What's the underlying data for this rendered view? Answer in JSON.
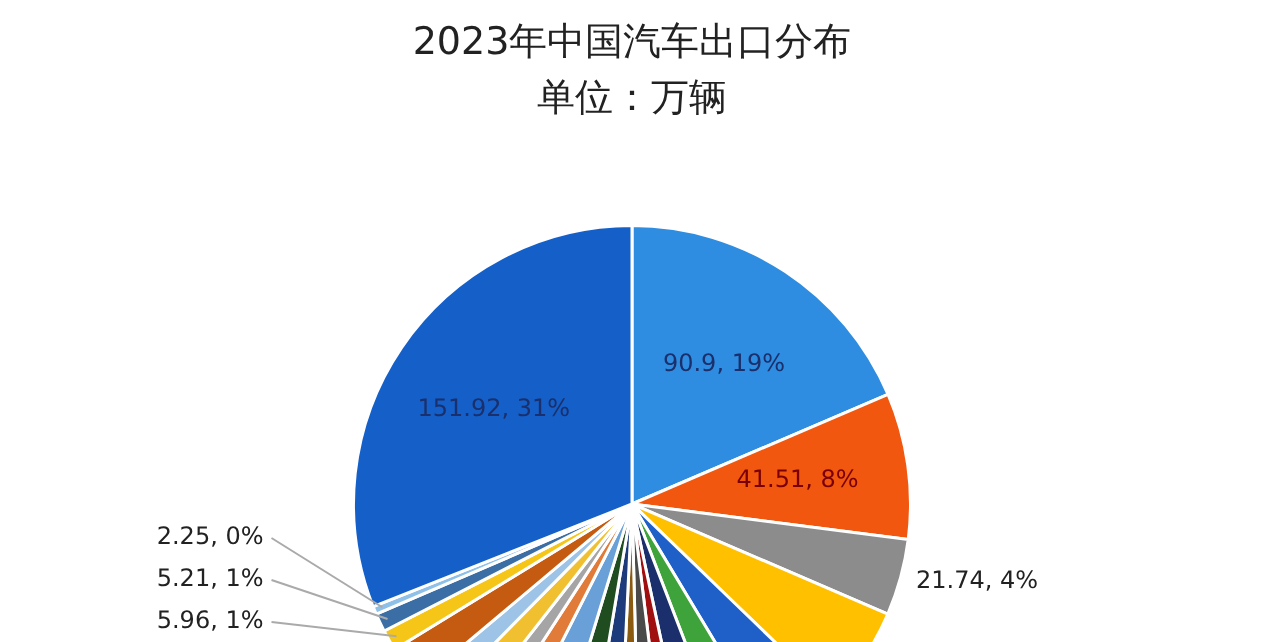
{
  "chart_data": {
    "type": "pie",
    "title": "2023年中国汽车出口分布",
    "subtitle": "单位：万辆",
    "categories": [
      null,
      null,
      null,
      null,
      null,
      null,
      null,
      null,
      null,
      null,
      null,
      null,
      null,
      null,
      null,
      null,
      null,
      null,
      null,
      null,
      null,
      null
    ],
    "values": [
      90.9,
      41.51,
      21.74,
      28.2,
      20.4,
      13.6,
      12.2,
      6.8,
      7.6,
      5.7,
      9.3,
      10.1,
      13.6,
      8.2,
      6.8,
      9.0,
      7.3,
      11.6,
      5.96,
      5.21,
      2.25,
      151.92
    ],
    "colors": [
      "#2e8de0",
      "#f2570f",
      "#8c8c8c",
      "#ffc000",
      "#1f5fc8",
      "#3ea33a",
      "#1a2f6b",
      "#a01010",
      "#4a4a4a",
      "#8a5a10",
      "#1d3a7a",
      "#1f4d1f",
      "#6aa0d8",
      "#e07b39",
      "#a5a5a5",
      "#f0c030",
      "#9dc3e6",
      "#c55a11",
      "#f5c518",
      "#3a6ea5",
      "#8fc1e8",
      "#1560c8"
    ],
    "value_labels": [
      "90.9, 19%",
      "41.51, 8%",
      "21.74, 4%",
      null,
      null,
      null,
      null,
      null,
      null,
      null,
      null,
      null,
      null,
      null,
      null,
      null,
      null,
      null,
      "5.96, 1%",
      "5.21, 1%",
      "2.25, 0%",
      "151.92, 31%"
    ],
    "legend": false
  }
}
